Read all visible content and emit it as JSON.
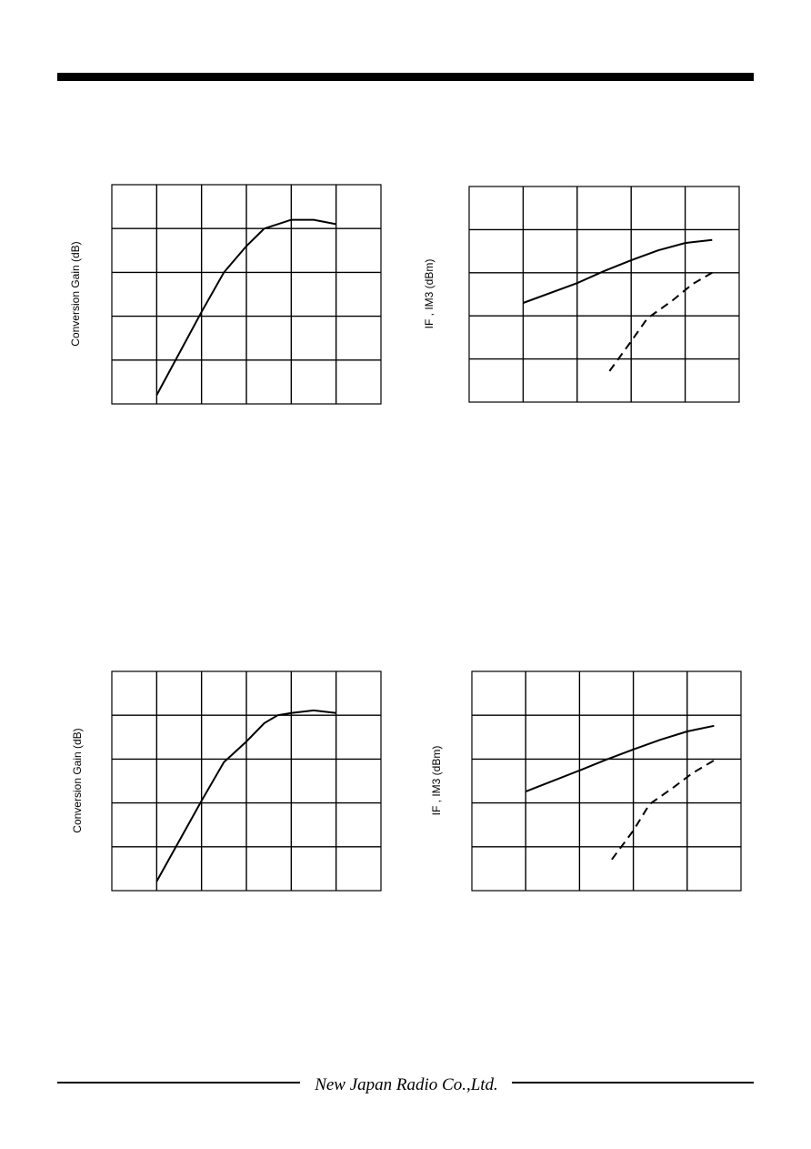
{
  "chart_data": [
    {
      "type": "line",
      "ylabel": "Conversion Gain (dB)",
      "xlim": [
        0,
        6
      ],
      "ylim": [
        0,
        5
      ],
      "xticks": [
        1,
        2,
        3,
        4,
        5
      ],
      "yticks": [
        1,
        2,
        3,
        4
      ],
      "grid": true,
      "series": [
        {
          "color": "#000000",
          "linestyle": "solid",
          "x": [
            1,
            2,
            2.5,
            3,
            3.4,
            3.7,
            4,
            4.5,
            5
          ],
          "values": [
            0.2,
            2.1,
            3.0,
            3.6,
            4.0,
            4.1,
            4.2,
            4.2,
            4.1
          ]
        }
      ]
    },
    {
      "type": "line",
      "ylabel": "IF , IM3 (dBm)",
      "xlim": [
        0,
        5
      ],
      "ylim": [
        0,
        5
      ],
      "xticks": [
        1,
        2,
        3,
        4
      ],
      "yticks": [
        1,
        2,
        3,
        4
      ],
      "grid": true,
      "series": [
        {
          "color": "#000000",
          "linestyle": "solid",
          "x": [
            1,
            2,
            2.5,
            3,
            3.5,
            4,
            4.5
          ],
          "values": [
            2.3,
            2.76,
            3.04,
            3.29,
            3.52,
            3.69,
            3.76
          ]
        },
        {
          "color": "#000000",
          "linestyle": "dashed",
          "x": [
            2.6,
            3,
            3.3,
            3.77,
            4.14,
            4.5
          ],
          "values": [
            0.72,
            1.41,
            1.94,
            2.36,
            2.74,
            3.0
          ]
        }
      ]
    },
    {
      "type": "line",
      "ylabel": "Conversion Gain (dB)",
      "xlim": [
        0,
        6
      ],
      "ylim": [
        0,
        5
      ],
      "xticks": [
        1,
        2,
        3,
        4,
        5
      ],
      "yticks": [
        1,
        2,
        3,
        4
      ],
      "grid": true,
      "series": [
        {
          "color": "#000000",
          "linestyle": "solid",
          "x": [
            1,
            2,
            2.5,
            3,
            3.4,
            3.7,
            4,
            4.5,
            5
          ],
          "values": [
            0.21,
            2.05,
            2.93,
            3.4,
            3.82,
            4.0,
            4.05,
            4.11,
            4.05
          ]
        }
      ]
    },
    {
      "type": "line",
      "ylabel": "IF , IM3 (dBm)",
      "xlim": [
        0,
        5
      ],
      "ylim": [
        0,
        5
      ],
      "xticks": [
        1,
        2,
        3,
        4
      ],
      "yticks": [
        1,
        2,
        3,
        4
      ],
      "grid": true,
      "series": [
        {
          "color": "#000000",
          "linestyle": "solid",
          "x": [
            1,
            2,
            2.5,
            3,
            3.5,
            4,
            4.5
          ],
          "values": [
            2.26,
            2.74,
            2.99,
            3.22,
            3.44,
            3.63,
            3.76
          ]
        },
        {
          "color": "#000000",
          "linestyle": "dashed",
          "x": [
            2.6,
            3,
            3.3,
            3.73,
            4.1,
            4.5
          ],
          "values": [
            0.71,
            1.37,
            1.97,
            2.34,
            2.68,
            2.97
          ]
        }
      ]
    }
  ],
  "footer": "New Japan Radio Co.,Ltd."
}
